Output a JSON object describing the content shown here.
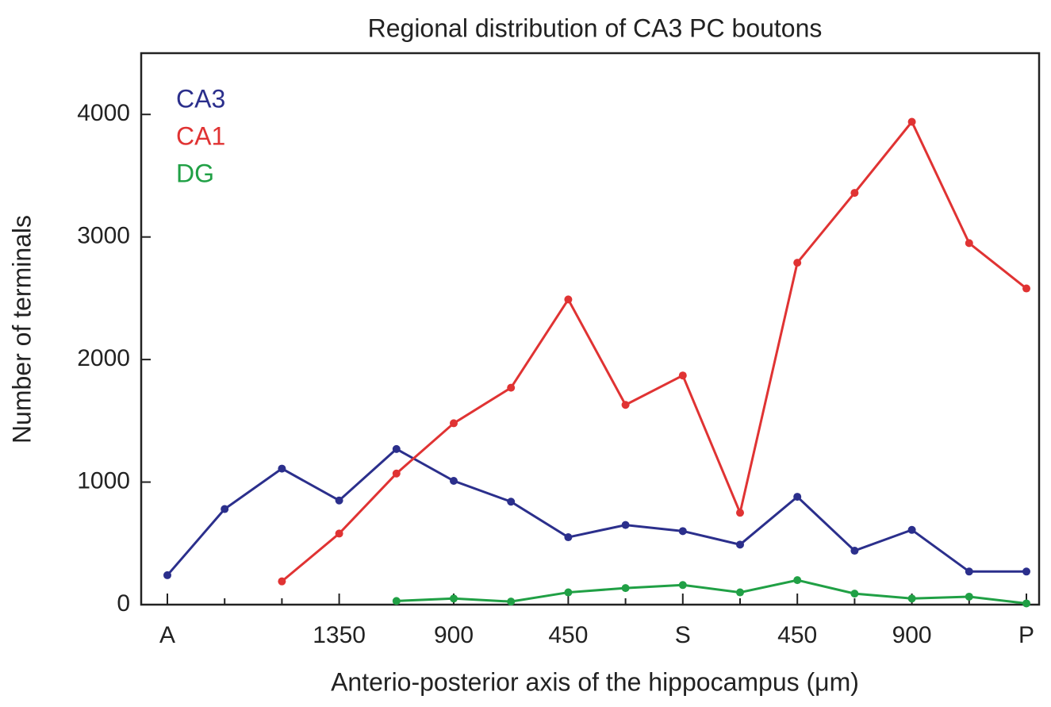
{
  "chart_data": {
    "type": "line",
    "title": "Regional distribution of CA3 PC boutons",
    "x_label": "Anterio-posterior axis of the hippocampus (μm)",
    "y_label": "Number of terminals",
    "categories": [
      "A",
      null,
      null,
      "1350",
      null,
      "900",
      null,
      "450",
      null,
      "S",
      null,
      "450",
      null,
      "900",
      null,
      "P"
    ],
    "series": [
      {
        "name": "CA3",
        "color": "#2b2f8c",
        "values": [
          240,
          780,
          1110,
          850,
          1270,
          1010,
          840,
          550,
          650,
          600,
          490,
          880,
          440,
          610,
          270,
          270
        ]
      },
      {
        "name": "CA1",
        "color": "#e03333",
        "values": [
          null,
          null,
          190,
          580,
          1070,
          1480,
          1770,
          2490,
          1630,
          1870,
          750,
          2790,
          3360,
          3940,
          2950,
          2580
        ]
      },
      {
        "name": "DG",
        "color": "#20a045",
        "values": [
          null,
          null,
          null,
          null,
          30,
          50,
          25,
          100,
          135,
          160,
          100,
          200,
          90,
          50,
          65,
          10
        ]
      }
    ],
    "ylim": [
      0,
      4500
    ],
    "yticks": [
      0,
      1000,
      2000,
      3000,
      4000
    ],
    "legend": "upper left"
  }
}
